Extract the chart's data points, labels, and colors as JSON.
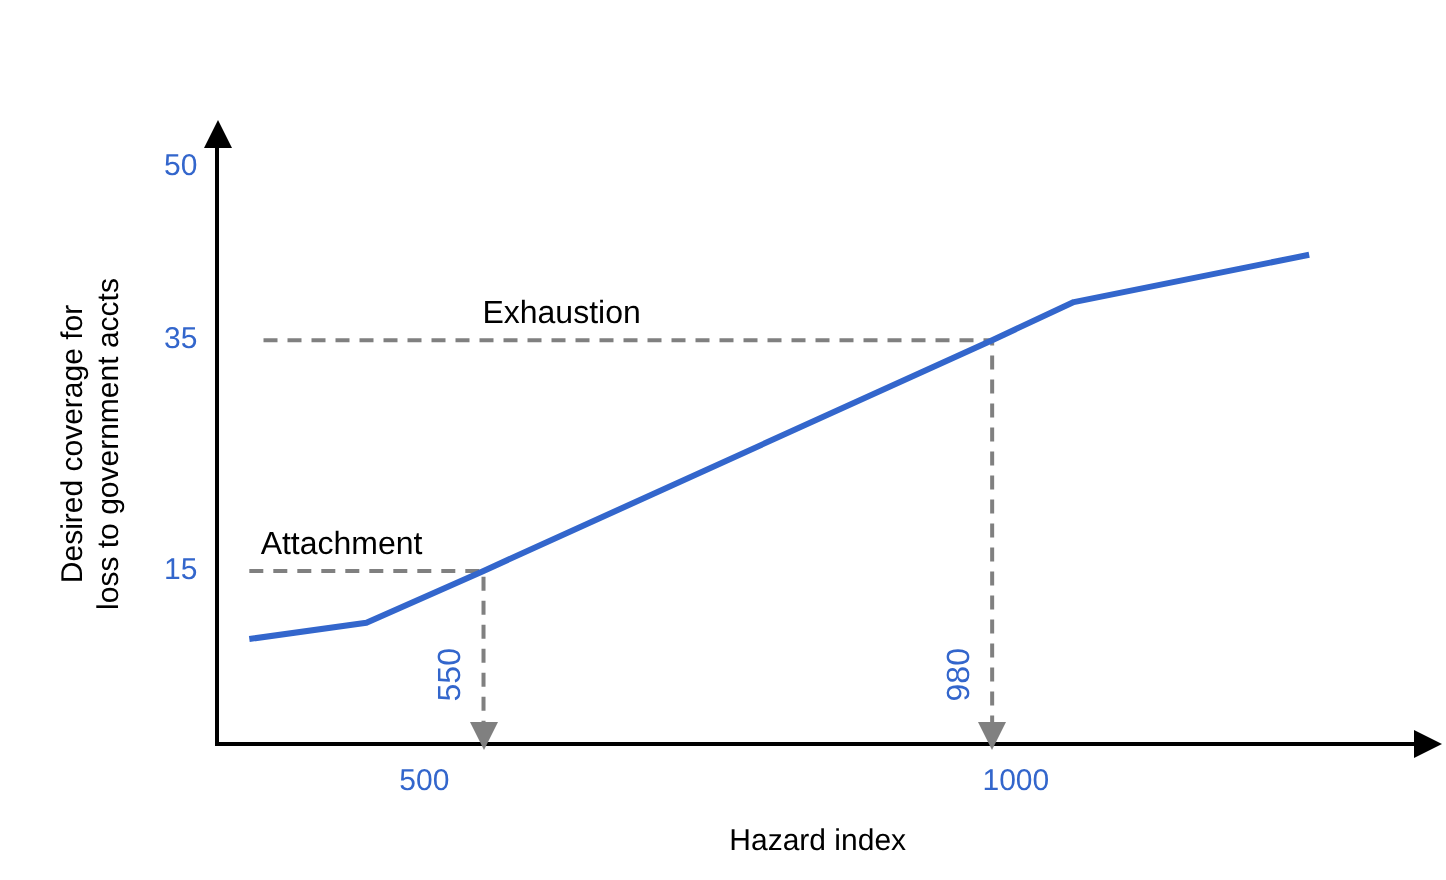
{
  "chart_data": {
    "type": "line",
    "xlabel": "Hazard index",
    "ylabel": "Desired coverage for\nloss to government accts",
    "xlim": [
      325,
      1340
    ],
    "ylim": [
      0,
      52
    ],
    "xticks": [
      500,
      1000
    ],
    "yticks": [
      15,
      35,
      50
    ],
    "grid": false,
    "legend": false,
    "marker": "none",
    "series": [
      {
        "color": "#3366cc",
        "x": [
          352,
          451,
          550,
          980,
          1049,
          1248
        ],
        "values": [
          9.1,
          10.5,
          15,
          35,
          38.3,
          42.4
        ]
      },
      {
        "color": "#808080",
        "line_style": "dashed",
        "x": [
          352,
          550,
          550
        ],
        "values": [
          15,
          15,
          0.6
        ]
      },
      {
        "color": "#808080",
        "line_style": "dashed",
        "x": [
          364,
          980,
          980
        ],
        "values": [
          35,
          35,
          0.6
        ]
      }
    ],
    "annotations": [
      {
        "text": "Attachment",
        "x": 430,
        "y": 15
      },
      {
        "text": "Exhaustion",
        "x": 616,
        "y": 35
      },
      {
        "text": "550",
        "x": 550,
        "y": 6
      },
      {
        "text": "980",
        "x": 980,
        "y": 6
      }
    ]
  }
}
